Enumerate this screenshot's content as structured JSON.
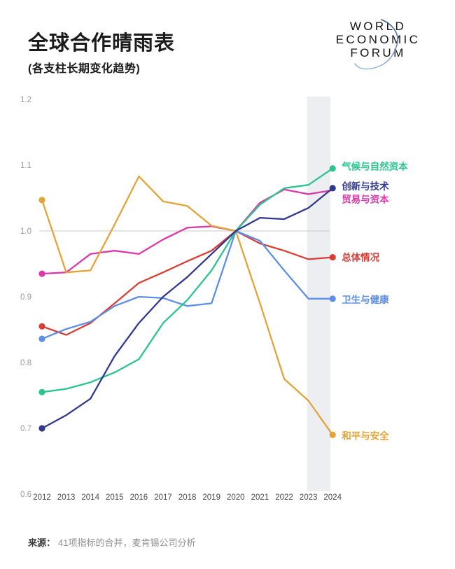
{
  "header": {
    "title": "全球合作晴雨表",
    "subtitle": "(各支柱长期变化趋势)",
    "logo_line1": "WORLD",
    "logo_line2": "ECONOMIC",
    "logo_line3": "FORUM"
  },
  "chart_data": {
    "type": "line",
    "title": "全球合作晴雨表 (各支柱长期变化趋势)",
    "x": [
      2012,
      2013,
      2014,
      2015,
      2016,
      2017,
      2018,
      2019,
      2020,
      2021,
      2022,
      2023,
      2024
    ],
    "ylim": [
      0.6,
      1.2
    ],
    "yticks": [
      1.2,
      1.1,
      1.0,
      0.9,
      0.8,
      0.7,
      0.6
    ],
    "baseline": 1.0,
    "gridlines": [
      1.0
    ],
    "legend_position": "right-of-line-ends",
    "highlight_band_years": [
      2023,
      2024
    ],
    "highlight_band_color": "#EDEEF2",
    "gridline_color": "#CACACA",
    "series": [
      {
        "name": "气候与自然资本",
        "color": "#2AC48E",
        "values": [
          0.755,
          0.76,
          0.77,
          0.785,
          0.805,
          0.86,
          0.895,
          0.94,
          1.0,
          1.04,
          1.065,
          1.07,
          1.095
        ]
      },
      {
        "name": "创新与技术",
        "color": "#30398F",
        "values": [
          0.7,
          0.72,
          0.745,
          0.81,
          0.86,
          0.9,
          0.93,
          0.965,
          1.0,
          1.02,
          1.018,
          1.035,
          1.065
        ]
      },
      {
        "name": "贸易与资本",
        "color": "#DB39A9",
        "values": [
          0.935,
          0.937,
          0.965,
          0.97,
          0.965,
          0.987,
          1.005,
          1.007,
          1.0,
          1.043,
          1.063,
          1.056,
          1.062
        ]
      },
      {
        "name": "总体情况",
        "color": "#D93E35",
        "values": [
          0.855,
          0.842,
          0.86,
          0.89,
          0.921,
          0.937,
          0.954,
          0.97,
          1.0,
          0.981,
          0.97,
          0.957,
          0.96
        ]
      },
      {
        "name": "卫生与健康",
        "color": "#5E8FE6",
        "values": [
          0.836,
          0.851,
          0.862,
          0.886,
          0.9,
          0.898,
          0.886,
          0.89,
          1.0,
          0.985,
          0.94,
          0.897,
          0.897
        ]
      },
      {
        "name": "和平与安全",
        "color": "#E4A339",
        "values": [
          1.047,
          0.937,
          0.94,
          1.01,
          1.083,
          1.045,
          1.038,
          1.008,
          1.0,
          0.89,
          0.775,
          0.742,
          0.69
        ]
      }
    ]
  },
  "footer": {
    "source_label": "来源：",
    "source_text": "41项指标的合并，麦肯锡公司分析"
  }
}
